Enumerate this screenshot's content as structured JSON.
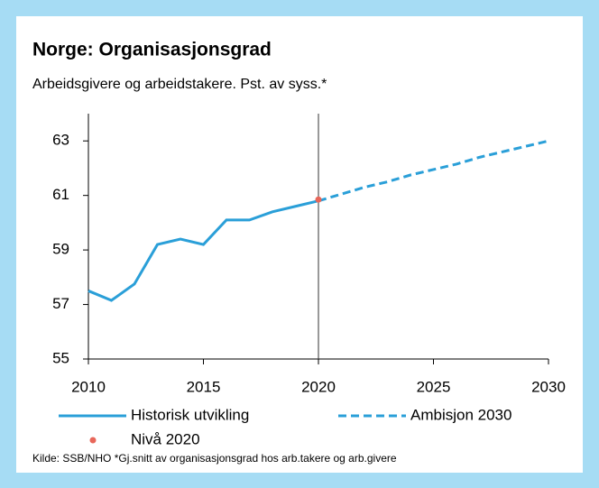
{
  "chart_data": {
    "type": "line",
    "title": "Norge: Organisasjonsgrad",
    "subtitle": "Arbeidsgivere og arbeidstakere. Pst. av syss.*",
    "source": "Kilde: SSB/NHO *Gj.snitt av organisasjonsgrad hos arb.takere og arb.givere",
    "xlim": [
      2010,
      2030
    ],
    "xticks": [
      2010,
      2015,
      2020,
      2025,
      2030
    ],
    "ylim": [
      55,
      64
    ],
    "yticks": [
      55,
      57,
      59,
      61,
      63
    ],
    "vline": 2020,
    "series": [
      {
        "name": "Historisk utvikling",
        "color": "#2a9fd8",
        "style": "solid",
        "x": [
          2010,
          2011,
          2012,
          2013,
          2014,
          2015,
          2016,
          2017,
          2018,
          2019,
          2020
        ],
        "values": [
          57.5,
          57.15,
          57.75,
          59.2,
          59.4,
          59.2,
          60.1,
          60.1,
          60.4,
          60.6,
          60.8
        ]
      },
      {
        "name": "Ambisjon 2030",
        "color": "#2a9fd8",
        "style": "dashed",
        "x": [
          2020,
          2021,
          2022,
          2023,
          2024,
          2025,
          2026,
          2027,
          2028,
          2029,
          2030
        ],
        "values": [
          60.8,
          61.05,
          61.3,
          61.5,
          61.75,
          61.95,
          62.15,
          62.4,
          62.6,
          62.8,
          63.0
        ]
      },
      {
        "name": "Nivå 2020",
        "color": "#e8675a",
        "style": "dot",
        "x": [
          2020
        ],
        "values": [
          60.85
        ]
      }
    ]
  }
}
